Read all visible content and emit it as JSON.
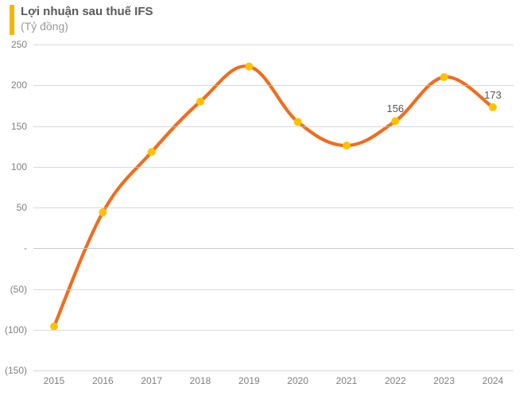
{
  "chart": {
    "type": "line",
    "title": "Lợi nhuận sau thuế IFS",
    "subtitle": "(Tỷ đồng)",
    "title_color": "#5a5a5a",
    "subtitle_color": "#9a9a9a",
    "title_fontsize": 15,
    "subtitle_fontsize": 14,
    "accent_bar_color": "#f7b500",
    "background_color": "#ffffff",
    "grid_color": "#c9c9c9",
    "line_color": "#ef6d1f",
    "marker_color": "#ffc200",
    "line_width": 4.2,
    "marker_radius": 5,
    "ylim": [
      -150,
      250
    ],
    "ytick_step": 50,
    "categories": [
      "2015",
      "2016",
      "2017",
      "2018",
      "2019",
      "2020",
      "2021",
      "2022",
      "2023",
      "2024"
    ],
    "values": [
      -96,
      44,
      118,
      180,
      223,
      155,
      126,
      156,
      210,
      173
    ],
    "data_labels": [
      {
        "index": 7,
        "text": "156"
      },
      {
        "index": 9,
        "text": "173"
      }
    ],
    "yticks": [
      {
        "v": 250,
        "label": "250"
      },
      {
        "v": 200,
        "label": "200"
      },
      {
        "v": 150,
        "label": "150"
      },
      {
        "v": 100,
        "label": "100"
      },
      {
        "v": 50,
        "label": "50"
      },
      {
        "v": 0,
        "label": "-"
      },
      {
        "v": -50,
        "label": "(50)"
      },
      {
        "v": -100,
        "label": "(100)"
      },
      {
        "v": -150,
        "label": "(150)"
      }
    ]
  }
}
